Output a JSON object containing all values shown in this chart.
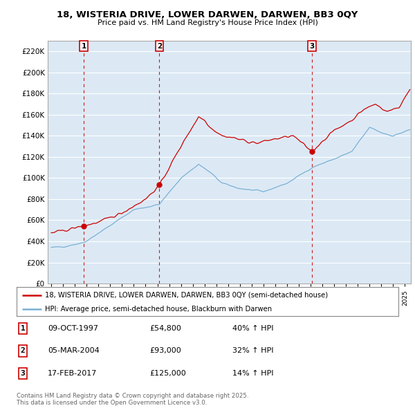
{
  "title1": "18, WISTERIA DRIVE, LOWER DARWEN, DARWEN, BB3 0QY",
  "title2": "Price paid vs. HM Land Registry's House Price Index (HPI)",
  "legend_line1": "18, WISTERIA DRIVE, LOWER DARWEN, DARWEN, BB3 0QY (semi-detached house)",
  "legend_line2": "HPI: Average price, semi-detached house, Blackburn with Darwen",
  "transactions": [
    {
      "num": 1,
      "date": "09-OCT-1997",
      "price": 54800,
      "change": "40% ↑ HPI",
      "t": 1997.77
    },
    {
      "num": 2,
      "date": "05-MAR-2004",
      "price": 93000,
      "change": "32% ↑ HPI",
      "t": 2004.17
    },
    {
      "num": 3,
      "date": "17-FEB-2017",
      "price": 125000,
      "change": "14% ↑ HPI",
      "t": 2017.12
    }
  ],
  "footnote": "Contains HM Land Registry data © Crown copyright and database right 2025.\nThis data is licensed under the Open Government Licence v3.0.",
  "price_color": "#cc0000",
  "hpi_color": "#7ab0d4",
  "vline_color": "#cc0000",
  "background_color": "#ffffff",
  "chart_bg_color": "#dce9f5",
  "grid_color": "#ffffff",
  "ylim": [
    0,
    230000
  ],
  "yticks": [
    0,
    20000,
    40000,
    60000,
    80000,
    100000,
    120000,
    140000,
    160000,
    180000,
    200000,
    220000
  ],
  "xlim_start": 1995.0,
  "xlim_end": 2025.5
}
